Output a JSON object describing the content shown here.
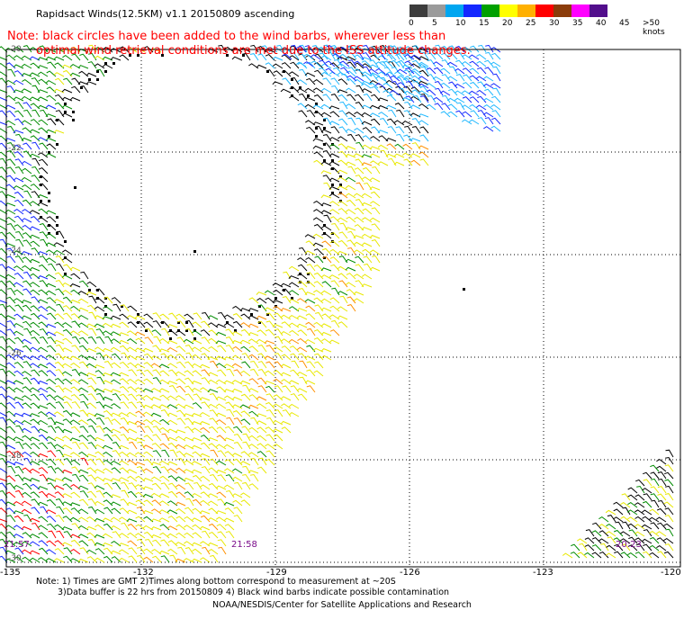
{
  "title": "Rapidsact Winds(12.5KM) v1.1 20150809 ascending",
  "note_line1": "Note: black circles have been added to the wind barbs, wherever less than",
  "note_line2": "optimal wind retrieval conditions are met due to the ISS attitude changes.",
  "legend": {
    "labels": [
      "0",
      "5",
      "10",
      "15",
      "20",
      "25",
      "30",
      "35",
      "40",
      "45",
      ">50 knots"
    ],
    "colors": [
      "#3c3c3c",
      "#9a9a9a",
      "#00a6f0",
      "#1428ff",
      "#00a000",
      "#ffff00",
      "#ffb000",
      "#ff0000",
      "#8b3c0a",
      "#ff00ff",
      "#520e8c"
    ]
  },
  "map": {
    "lon_labels": [
      "-135",
      "-132",
      "-129",
      "-126",
      "-123",
      "-120"
    ],
    "lat_labels": [
      "-20",
      "-22",
      "-24",
      "-26",
      "-28",
      "-30"
    ],
    "time_labels": [
      "21:57",
      "21:58",
      "20:23"
    ]
  },
  "footer_line1": "Note: 1) Times are GMT 2)Times along bottom correspond to measurement at ~20S",
  "footer_line2": "3)Data buffer is 22 hrs from 20150809 4) Black wind barbs indicate possible contamination",
  "credit": "NOAA/NESDIS/Center for Satellite Applications and Research"
}
